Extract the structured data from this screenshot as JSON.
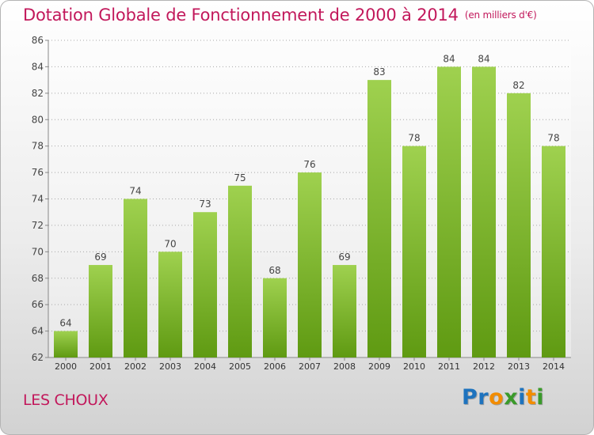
{
  "title": "Dotation Globale de Fonctionnement de 2000 à 2014",
  "unit": "(en milliers d'€)",
  "commune": "LES CHOUX",
  "logo": {
    "letters": [
      {
        "char": "P",
        "color": "#1e73be"
      },
      {
        "char": "r",
        "color": "#1e73be"
      },
      {
        "char": "o",
        "color": "#f28c00"
      },
      {
        "char": "x",
        "color": "#3a9a2a"
      },
      {
        "char": "i",
        "color": "#1e73be"
      },
      {
        "char": "t",
        "color": "#f28c00"
      },
      {
        "char": "i",
        "color": "#3a9a2a"
      }
    ]
  },
  "chart_data": {
    "type": "bar",
    "categories": [
      "2000",
      "2001",
      "2002",
      "2003",
      "2004",
      "2005",
      "2006",
      "2007",
      "2008",
      "2009",
      "2010",
      "2011",
      "2012",
      "2013",
      "2014"
    ],
    "values": [
      64,
      69,
      74,
      70,
      73,
      75,
      68,
      76,
      69,
      83,
      78,
      84,
      84,
      82,
      78
    ],
    "ylim": [
      62,
      86
    ],
    "yticks": [
      62,
      64,
      66,
      68,
      70,
      72,
      74,
      76,
      78,
      80,
      82,
      84,
      86
    ],
    "grid": "horizontal dotted",
    "bar_color_top": "#9fd14f",
    "bar_color_bottom": "#5f9a12"
  }
}
